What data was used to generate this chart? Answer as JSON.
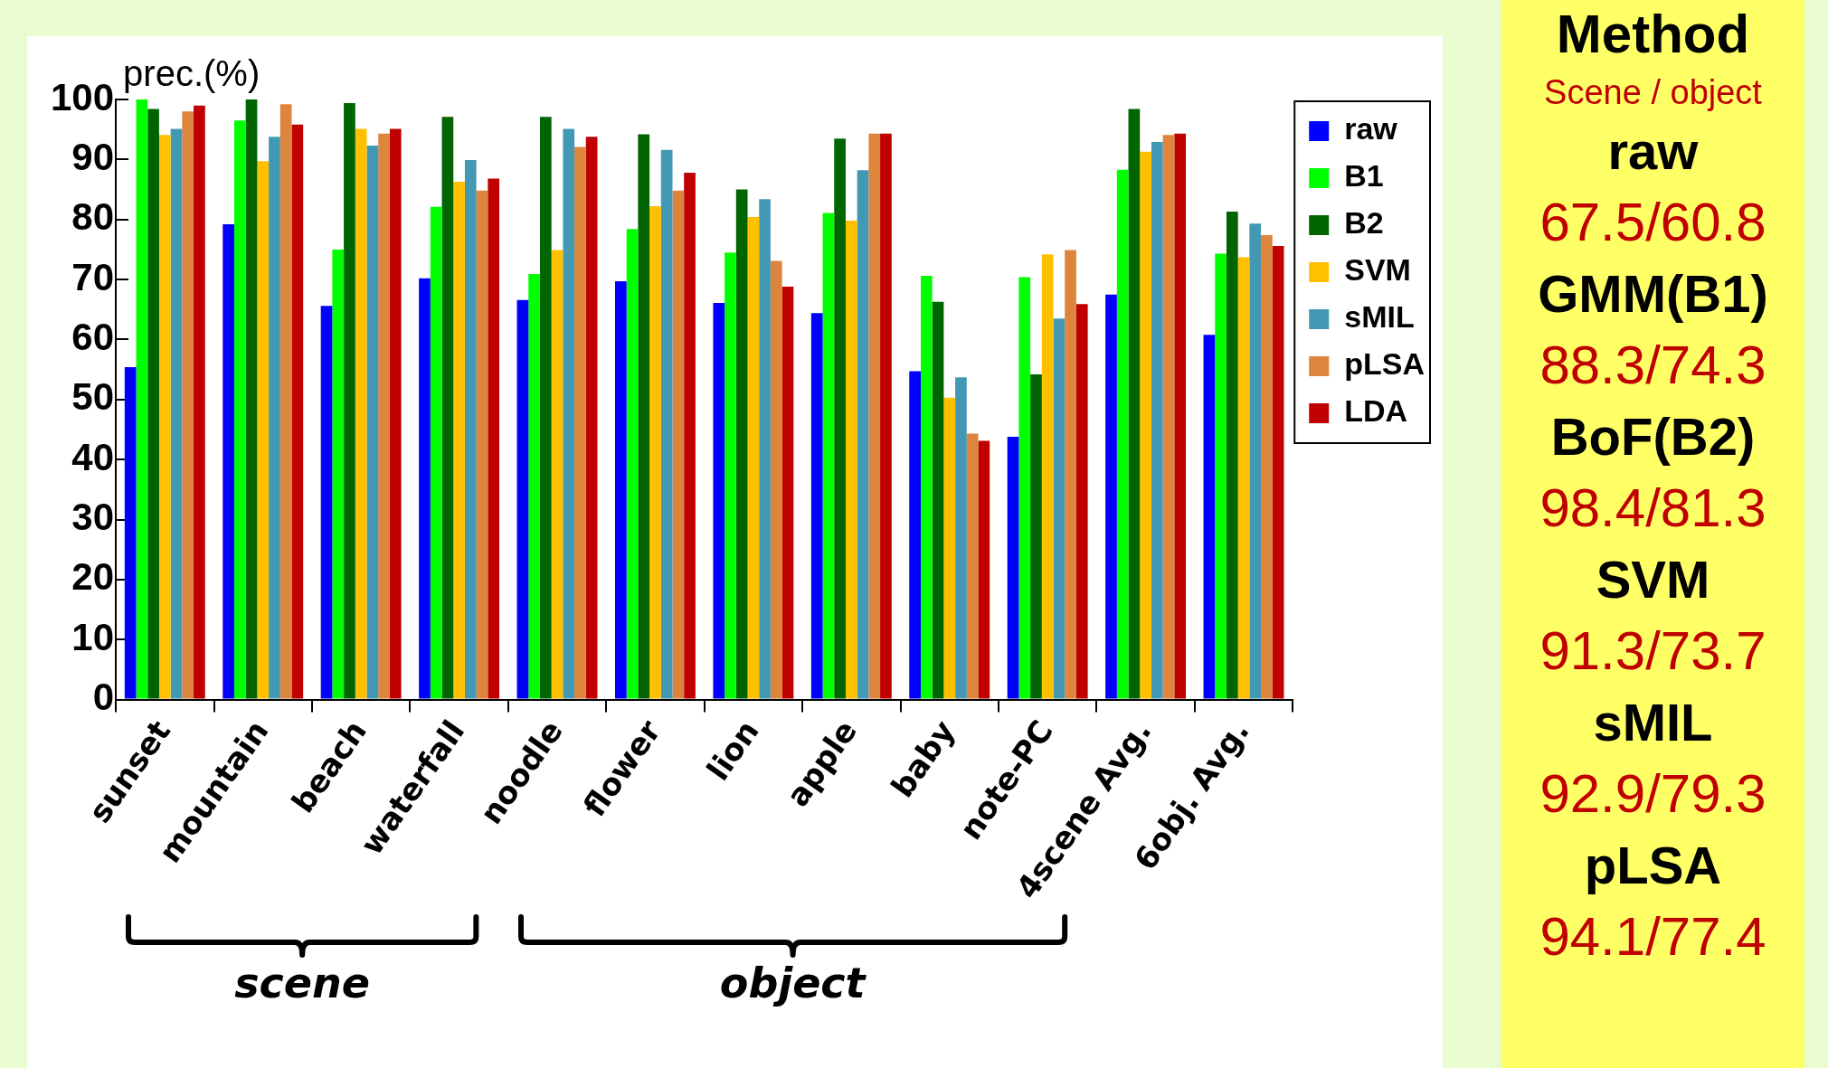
{
  "chart_data": {
    "type": "bar",
    "ylabel": "prec.(%)",
    "categories": [
      "sunset",
      "mountain",
      "beach",
      "waterfall",
      "noodle",
      "flower",
      "lion",
      "apple",
      "baby",
      "note-PC",
      "4scene Avg.",
      "6obj. Avg."
    ],
    "series": [
      {
        "name": "raw",
        "color": "#0000ff",
        "values": [
          55.4,
          79.2,
          65.6,
          70.2,
          66.6,
          69.7,
          66.1,
          64.4,
          54.7,
          43.8,
          67.5,
          60.8
        ]
      },
      {
        "name": "B1",
        "color": "#00ff00",
        "values": [
          100,
          96.5,
          75.0,
          82.1,
          70.9,
          78.4,
          74.5,
          81.1,
          70.6,
          70.4,
          88.3,
          74.3
        ]
      },
      {
        "name": "B2",
        "color": "#006400",
        "values": [
          98.4,
          100,
          99.4,
          97.1,
          97.1,
          94.2,
          85.0,
          93.5,
          66.3,
          54.2,
          98.4,
          81.3
        ]
      },
      {
        "name": "SVM",
        "color": "#ffc000",
        "values": [
          94.1,
          89.7,
          95.1,
          86.3,
          74.9,
          82.2,
          80.4,
          79.8,
          50.3,
          74.2,
          91.3,
          73.7
        ]
      },
      {
        "name": "sMIL",
        "color": "#4399b3",
        "values": [
          95.1,
          93.8,
          92.3,
          89.9,
          95.1,
          91.6,
          83.4,
          88.2,
          53.7,
          63.5,
          92.9,
          79.3
        ]
      },
      {
        "name": "pLSA",
        "color": "#dd843d",
        "values": [
          98.0,
          99.2,
          94.3,
          84.8,
          92.1,
          84.8,
          73.1,
          94.3,
          44.3,
          74.9,
          94.1,
          77.4
        ]
      },
      {
        "name": "LDA",
        "color": "#c00000",
        "values": [
          99.0,
          95.8,
          95.1,
          86.8,
          93.8,
          87.8,
          68.8,
          94.3,
          43.1,
          65.9,
          94.3,
          75.6
        ]
      }
    ],
    "ylim": [
      0,
      100
    ],
    "yticks": [
      0,
      10,
      20,
      30,
      40,
      50,
      60,
      70,
      80,
      90,
      100
    ],
    "grid": false,
    "legend": "top right",
    "annotations": [
      "scene",
      "object",
      "Method",
      "Scene / object",
      "raw",
      "67.5/60.8",
      "GMM(B1)",
      "88.3/74.3",
      "BoF(B2)",
      "98.4/81.3",
      "SVM",
      "91.3/73.7",
      "sMIL",
      "92.9/79.3",
      "pLSA",
      "94.1/77.4"
    ]
  }
}
